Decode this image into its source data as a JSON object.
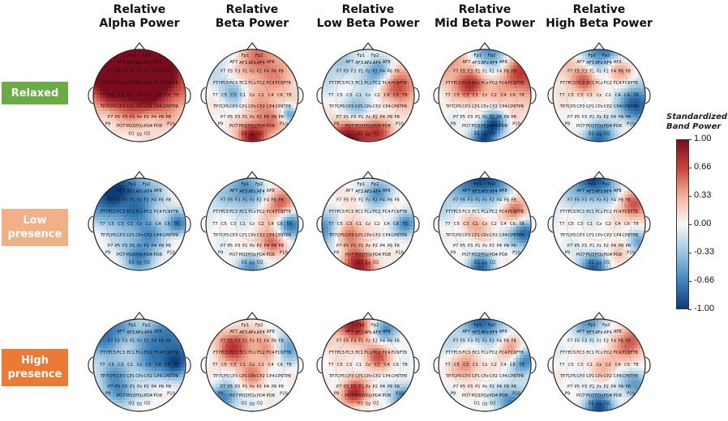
{
  "columns": [
    {
      "line1": "Relative",
      "line2": "Alpha Power"
    },
    {
      "line1": "Relative",
      "line2": "Beta Power"
    },
    {
      "line1": "Relative",
      "line2": "Low Beta Power"
    },
    {
      "line1": "Relative",
      "line2": "Mid Beta Power"
    },
    {
      "line1": "Relative",
      "line2": "High Beta Power"
    }
  ],
  "rows": [
    {
      "line1": "Relaxed",
      "line2": "",
      "color": "#6aab45"
    },
    {
      "line1": "Low",
      "line2": "presence",
      "color": "#f2b086"
    },
    {
      "line1": "High",
      "line2": "presence",
      "color": "#ec7a35"
    }
  ],
  "colorbar": {
    "title_line1": "Standardized",
    "title_line2": "Band Power",
    "ticks": [
      "1.00",
      "0.66",
      "0.33",
      "0.00",
      "-0.33",
      "-0.66",
      "-1.00"
    ],
    "colors": [
      "#7a0c1d",
      "#c8433c",
      "#f4b39a",
      "#f7f7f7",
      "#9cc6e0",
      "#3f86bf",
      "#0c3c78"
    ]
  },
  "electrodes": [
    "Fp1",
    "Fp2",
    "AF7",
    "AF3",
    "AFz",
    "AF4",
    "AF8",
    "F7",
    "F5",
    "F3",
    "F1",
    "Fz",
    "F2",
    "F4",
    "F6",
    "F8",
    "FT7",
    "FC5",
    "FC3",
    "FC1",
    "FCz",
    "FC2",
    "FC4",
    "FC6",
    "FT8",
    "T7",
    "C5",
    "C3",
    "C1",
    "Cz",
    "C2",
    "C4",
    "C6",
    "T8",
    "TP7",
    "CP5",
    "CP3",
    "CP1",
    "CPz",
    "CP2",
    "CP4",
    "CP6",
    "TP8",
    "P7",
    "P5",
    "P3",
    "P1",
    "Pz",
    "P2",
    "P4",
    "P6",
    "P8",
    "PO7",
    "PO3",
    "POz",
    "PO4",
    "PO8",
    "O1",
    "Oz",
    "O2",
    "P9",
    "P10"
  ],
  "maps": [
    [
      [
        0.8,
        0.1,
        0.1,
        0.8
      ],
      [
        0.9,
        0.35,
        0.25,
        0.8
      ],
      [
        0.55,
        0.75,
        0.3,
        0.9
      ],
      [
        -0.2,
        0.4,
        0.2,
        0.3
      ],
      [
        0.7,
        0.6,
        0.25,
        0.6
      ],
      [
        -0.1,
        0.2,
        0.15,
        0.2
      ]
    ],
    [
      [
        -0.4,
        0.1,
        0.1,
        0.5
      ],
      [
        0.9,
        0.5,
        0.95,
        0.3
      ],
      [
        0.5,
        0.6,
        0.15,
        0.9
      ],
      [
        -0.6,
        0.3,
        0.45,
        0.3
      ],
      [
        0.4,
        0.7,
        0.75,
        0.4
      ],
      [
        -0.7,
        0.9,
        0.7,
        0.2
      ]
    ],
    [
      [
        -0.3,
        0.1,
        0.1,
        0.6
      ],
      [
        0.95,
        0.3,
        0.98,
        0.45
      ],
      [
        0.6,
        0.6,
        0.9,
        0.35
      ],
      [
        0.7,
        0.85,
        0.4,
        0.4
      ],
      [
        -0.6,
        0.6,
        0.25,
        0.3
      ],
      [
        -0.5,
        0.4,
        0.65,
        0.3
      ]
    ],
    [
      [
        0.5,
        0.1,
        0.1,
        0.6
      ],
      [
        -0.95,
        0.6,
        0.02,
        0.5
      ],
      [
        -0.9,
        0.5,
        0.98,
        0.3
      ],
      [
        0.8,
        0.88,
        0.2,
        0.7
      ],
      [
        0.7,
        0.35,
        0.4,
        0.3
      ],
      [
        -0.8,
        0.6,
        0.8,
        0.25
      ]
    ],
    [
      [
        0.3,
        0.1,
        0.1,
        0.6
      ],
      [
        -0.85,
        0.55,
        0.02,
        0.45
      ],
      [
        -0.8,
        0.5,
        0.98,
        0.35
      ],
      [
        -0.9,
        0.92,
        0.6,
        0.4
      ],
      [
        0.6,
        0.7,
        0.2,
        0.3
      ],
      [
        0.5,
        0.35,
        0.35,
        0.3
      ]
    ],
    [
      [
        -0.7,
        0.1,
        0.1,
        0.6
      ],
      [
        -0.8,
        0.4,
        0.25,
        0.6
      ],
      [
        -0.6,
        0.5,
        0.85,
        0.4
      ],
      [
        0.25,
        0.35,
        0.25,
        0.25
      ],
      [
        -0.7,
        0.92,
        0.5,
        0.25
      ],
      [
        -0.4,
        0.6,
        0.6,
        0.3
      ]
    ],
    [
      [
        -0.2,
        0.1,
        0.1,
        0.6
      ],
      [
        0.6,
        0.8,
        0.3,
        0.4
      ],
      [
        0.6,
        0.7,
        0.7,
        0.3
      ],
      [
        -0.6,
        0.45,
        0.15,
        0.4
      ],
      [
        -0.6,
        0.5,
        0.98,
        0.3
      ],
      [
        -0.85,
        0.92,
        0.5,
        0.3
      ]
    ],
    [
      [
        0.1,
        0.1,
        0.1,
        0.6
      ],
      [
        -0.7,
        0.02,
        0.55,
        0.35
      ],
      [
        0.9,
        0.4,
        0.95,
        0.35
      ],
      [
        0.6,
        0.3,
        0.6,
        0.3
      ],
      [
        -0.6,
        0.6,
        0.15,
        0.3
      ],
      [
        -0.7,
        0.92,
        0.5,
        0.25
      ]
    ],
    [
      [
        -0.3,
        0.1,
        0.1,
        0.6
      ],
      [
        -0.95,
        0.5,
        0.0,
        0.5
      ],
      [
        -0.8,
        0.45,
        0.98,
        0.3
      ],
      [
        -0.9,
        0.93,
        0.6,
        0.3
      ],
      [
        0.6,
        0.85,
        0.35,
        0.3
      ],
      [
        0.4,
        0.4,
        0.5,
        0.3
      ]
    ],
    [
      [
        -0.1,
        0.1,
        0.1,
        0.6
      ],
      [
        -0.9,
        0.45,
        0.0,
        0.5
      ],
      [
        -0.8,
        0.45,
        0.98,
        0.35
      ],
      [
        0.6,
        0.88,
        0.3,
        0.35
      ],
      [
        -0.6,
        0.92,
        0.7,
        0.25
      ],
      [
        0.3,
        0.7,
        0.8,
        0.3
      ]
    ],
    [
      [
        -0.8,
        0.1,
        0.1,
        0.6
      ],
      [
        -0.8,
        0.8,
        0.25,
        0.6
      ],
      [
        -0.6,
        0.3,
        0.8,
        0.3
      ],
      [
        -0.6,
        0.92,
        0.5,
        0.3
      ],
      [
        -0.4,
        0.6,
        0.5,
        0.3
      ],
      [
        -0.5,
        0.2,
        0.6,
        0.3
      ]
    ],
    [
      [
        0.0,
        0.1,
        0.1,
        0.6
      ],
      [
        0.7,
        0.3,
        0.3,
        0.4
      ],
      [
        0.6,
        0.7,
        0.3,
        0.35
      ],
      [
        -0.7,
        0.2,
        0.85,
        0.3
      ],
      [
        -0.7,
        0.85,
        0.3,
        0.35
      ],
      [
        0.4,
        0.5,
        0.6,
        0.3
      ]
    ],
    [
      [
        0.2,
        0.1,
        0.1,
        0.6
      ],
      [
        0.8,
        0.35,
        0.05,
        0.35
      ],
      [
        0.8,
        0.35,
        0.8,
        0.3
      ],
      [
        0.6,
        0.6,
        0.4,
        0.3
      ],
      [
        -0.7,
        0.9,
        0.85,
        0.3
      ],
      [
        -0.6,
        0.7,
        0.1,
        0.3
      ]
    ],
    [
      [
        -0.2,
        0.1,
        0.1,
        0.6
      ],
      [
        -0.8,
        0.5,
        0.02,
        0.4
      ],
      [
        -0.7,
        0.8,
        0.9,
        0.35
      ],
      [
        -0.8,
        0.93,
        0.45,
        0.3
      ],
      [
        0.5,
        0.8,
        0.35,
        0.3
      ],
      [
        0.5,
        0.3,
        0.5,
        0.3
      ]
    ],
    [
      [
        0.0,
        0.1,
        0.1,
        0.6
      ],
      [
        -0.9,
        0.5,
        0.98,
        0.35
      ],
      [
        -0.6,
        0.4,
        0.02,
        0.35
      ],
      [
        0.6,
        0.85,
        0.25,
        0.4
      ],
      [
        -0.6,
        0.9,
        0.7,
        0.3
      ],
      [
        0.3,
        0.55,
        0.5,
        0.3
      ]
    ]
  ]
}
